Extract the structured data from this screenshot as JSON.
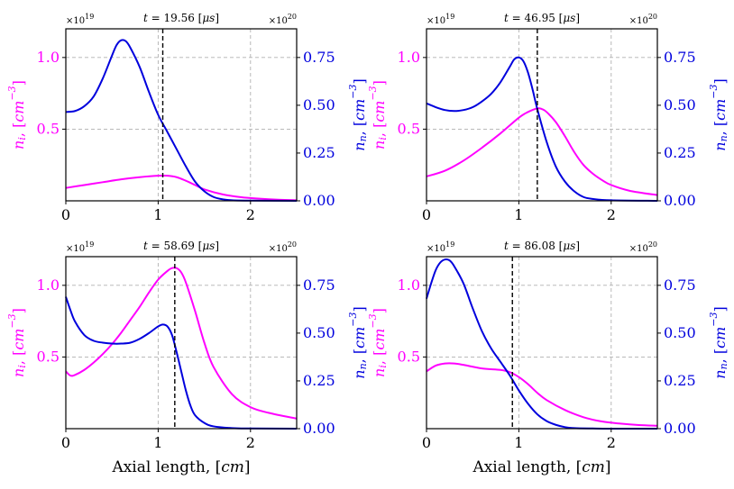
{
  "colors": {
    "ni": "#ff00ff",
    "nn": "#0000dd",
    "grid": "#b0b0b0",
    "marker": "#000000"
  },
  "chart_data": [
    {
      "type": "line",
      "title": "t = 19.56 [μs]",
      "xlabel": "",
      "ylabel_left": "n_i, [cm^-3]",
      "ylabel_right": "n_n, [cm^-3]",
      "multiplier_left": "×10¹⁹",
      "multiplier_right": "×10²⁰",
      "xlim": [
        0,
        2.5
      ],
      "ylim_left": [
        0,
        1.2
      ],
      "ylim_right": [
        0,
        0.9
      ],
      "xticks": [
        0,
        1,
        2
      ],
      "xtick_labels": [
        "0",
        "1",
        "2"
      ],
      "yticks_left": [
        0.5,
        1.0
      ],
      "ytick_labels_left": [
        "0.5",
        "1.0"
      ],
      "yticks_right": [
        0,
        0.25,
        0.5,
        0.75
      ],
      "ytick_labels_right": [
        "0.00",
        "0.25",
        "0.50",
        "0.75"
      ],
      "grid": true,
      "vline_x": 1.05,
      "series": [
        {
          "name": "n_i",
          "axis": "left",
          "x": [
            0,
            0.2,
            0.4,
            0.6,
            0.8,
            1.0,
            1.1,
            1.2,
            1.3,
            1.4,
            1.5,
            1.7,
            1.9,
            2.1,
            2.3,
            2.5
          ],
          "y": [
            0.09,
            0.11,
            0.13,
            0.15,
            0.165,
            0.175,
            0.175,
            0.165,
            0.14,
            0.11,
            0.08,
            0.045,
            0.025,
            0.015,
            0.008,
            0.004
          ]
        },
        {
          "name": "n_n",
          "axis": "right",
          "x": [
            0,
            0.1,
            0.2,
            0.3,
            0.4,
            0.5,
            0.55,
            0.6,
            0.65,
            0.7,
            0.8,
            0.9,
            1.0,
            1.1,
            1.2,
            1.3,
            1.4,
            1.5,
            1.6,
            1.7,
            1.8,
            2.0,
            2.5
          ],
          "y": [
            0.465,
            0.47,
            0.495,
            0.545,
            0.64,
            0.76,
            0.815,
            0.84,
            0.835,
            0.8,
            0.7,
            0.57,
            0.45,
            0.36,
            0.27,
            0.18,
            0.1,
            0.05,
            0.02,
            0.008,
            0.003,
            0.001,
            0.0
          ]
        }
      ]
    },
    {
      "type": "line",
      "title": "t = 46.95 [μs]",
      "xlabel": "",
      "ylabel_left": "n_i, [cm^-3]",
      "ylabel_right": "n_n, [cm^-3]",
      "multiplier_left": "×10¹⁹",
      "multiplier_right": "×10²⁰",
      "xlim": [
        0,
        2.5
      ],
      "ylim_left": [
        0,
        1.2
      ],
      "ylim_right": [
        0,
        0.9
      ],
      "xticks": [
        0,
        1,
        2
      ],
      "xtick_labels": [
        "0",
        "1",
        "2"
      ],
      "yticks_left": [
        0.5,
        1.0
      ],
      "ytick_labels_left": [
        "0.5",
        "1.0"
      ],
      "yticks_right": [
        0,
        0.25,
        0.5,
        0.75
      ],
      "ytick_labels_right": [
        "0.00",
        "0.25",
        "0.50",
        "0.75"
      ],
      "grid": true,
      "vline_x": 1.2,
      "series": [
        {
          "name": "n_i",
          "axis": "left",
          "x": [
            0,
            0.2,
            0.4,
            0.6,
            0.8,
            1.0,
            1.1,
            1.2,
            1.25,
            1.3,
            1.4,
            1.5,
            1.6,
            1.7,
            1.8,
            1.9,
            2.0,
            2.2,
            2.5
          ],
          "y": [
            0.17,
            0.21,
            0.28,
            0.37,
            0.47,
            0.58,
            0.62,
            0.645,
            0.64,
            0.62,
            0.55,
            0.45,
            0.34,
            0.25,
            0.19,
            0.145,
            0.11,
            0.07,
            0.04
          ]
        },
        {
          "name": "n_n",
          "axis": "right",
          "x": [
            0,
            0.1,
            0.2,
            0.3,
            0.4,
            0.5,
            0.6,
            0.7,
            0.8,
            0.9,
            0.95,
            1.0,
            1.05,
            1.1,
            1.15,
            1.2,
            1.3,
            1.4,
            1.5,
            1.6,
            1.7,
            1.8,
            2.0,
            2.5
          ],
          "y": [
            0.51,
            0.49,
            0.475,
            0.47,
            0.475,
            0.49,
            0.52,
            0.56,
            0.62,
            0.7,
            0.74,
            0.75,
            0.73,
            0.67,
            0.58,
            0.48,
            0.31,
            0.18,
            0.1,
            0.05,
            0.02,
            0.01,
            0.003,
            0.0
          ]
        }
      ]
    },
    {
      "type": "line",
      "title": "t = 58.69 [μs]",
      "xlabel": "Axial length, [cm]",
      "ylabel_left": "n_i, [cm^-3]",
      "ylabel_right": "n_n, [cm^-3]",
      "multiplier_left": "×10¹⁹",
      "multiplier_right": "×10²⁰",
      "xlim": [
        0,
        2.5
      ],
      "ylim_left": [
        0,
        1.2
      ],
      "ylim_right": [
        0,
        0.9
      ],
      "xticks": [
        0,
        1,
        2
      ],
      "xtick_labels": [
        "0",
        "1",
        "2"
      ],
      "yticks_left": [
        0.5,
        1.0
      ],
      "ytick_labels_left": [
        "0.5",
        "1.0"
      ],
      "yticks_right": [
        0,
        0.25,
        0.5,
        0.75
      ],
      "ytick_labels_right": [
        "0.00",
        "0.25",
        "0.50",
        "0.75"
      ],
      "grid": true,
      "vline_x": 1.18,
      "series": [
        {
          "name": "n_i",
          "axis": "left",
          "x": [
            0,
            0.05,
            0.1,
            0.2,
            0.3,
            0.4,
            0.5,
            0.6,
            0.7,
            0.8,
            0.9,
            1.0,
            1.1,
            1.15,
            1.2,
            1.25,
            1.3,
            1.4,
            1.5,
            1.6,
            1.8,
            2.0,
            2.2,
            2.5
          ],
          "y": [
            0.4,
            0.37,
            0.375,
            0.41,
            0.46,
            0.52,
            0.59,
            0.67,
            0.76,
            0.85,
            0.95,
            1.04,
            1.1,
            1.12,
            1.12,
            1.09,
            1.02,
            0.82,
            0.6,
            0.43,
            0.24,
            0.15,
            0.11,
            0.07
          ]
        },
        {
          "name": "n_n",
          "axis": "right",
          "x": [
            0,
            0.05,
            0.1,
            0.2,
            0.3,
            0.4,
            0.5,
            0.6,
            0.7,
            0.8,
            0.9,
            1.0,
            1.05,
            1.1,
            1.15,
            1.2,
            1.25,
            1.3,
            1.35,
            1.4,
            1.5,
            1.6,
            1.8,
            2.0,
            2.5
          ],
          "y": [
            0.69,
            0.62,
            0.56,
            0.49,
            0.46,
            0.45,
            0.445,
            0.445,
            0.45,
            0.47,
            0.5,
            0.535,
            0.545,
            0.535,
            0.49,
            0.4,
            0.3,
            0.2,
            0.12,
            0.07,
            0.03,
            0.012,
            0.003,
            0.001,
            0.0
          ]
        }
      ]
    },
    {
      "type": "line",
      "title": "t = 86.08 [μs]",
      "xlabel": "Axial length, [cm]",
      "ylabel_left": "n_i, [cm^-3]",
      "ylabel_right": "n_n, [cm^-3]",
      "multiplier_left": "×10¹⁹",
      "multiplier_right": "×10²⁰",
      "xlim": [
        0,
        2.5
      ],
      "ylim_left": [
        0,
        1.2
      ],
      "ylim_right": [
        0,
        0.9
      ],
      "xticks": [
        0,
        1,
        2
      ],
      "xtick_labels": [
        "0",
        "1",
        "2"
      ],
      "yticks_left": [
        0.5,
        1.0
      ],
      "ytick_labels_left": [
        "0.5",
        "1.0"
      ],
      "yticks_right": [
        0,
        0.25,
        0.5,
        0.75
      ],
      "ytick_labels_right": [
        "0.00",
        "0.25",
        "0.50",
        "0.75"
      ],
      "grid": true,
      "vline_x": 0.93,
      "series": [
        {
          "name": "n_i",
          "axis": "left",
          "x": [
            0,
            0.1,
            0.2,
            0.3,
            0.4,
            0.6,
            0.8,
            0.9,
            1.0,
            1.1,
            1.2,
            1.3,
            1.5,
            1.7,
            1.9,
            2.1,
            2.3,
            2.5
          ],
          "y": [
            0.4,
            0.44,
            0.455,
            0.455,
            0.445,
            0.42,
            0.41,
            0.395,
            0.36,
            0.31,
            0.25,
            0.2,
            0.13,
            0.08,
            0.05,
            0.035,
            0.025,
            0.02
          ]
        },
        {
          "name": "n_n",
          "axis": "right",
          "x": [
            0,
            0.05,
            0.1,
            0.15,
            0.2,
            0.25,
            0.3,
            0.4,
            0.5,
            0.6,
            0.7,
            0.8,
            0.9,
            1.0,
            1.1,
            1.2,
            1.3,
            1.4,
            1.5,
            1.6,
            1.8,
            2.0,
            2.5
          ],
          "y": [
            0.68,
            0.76,
            0.83,
            0.87,
            0.885,
            0.88,
            0.85,
            0.76,
            0.63,
            0.51,
            0.42,
            0.35,
            0.28,
            0.2,
            0.13,
            0.075,
            0.04,
            0.02,
            0.008,
            0.003,
            0.001,
            0.0,
            0.0
          ]
        }
      ]
    }
  ]
}
